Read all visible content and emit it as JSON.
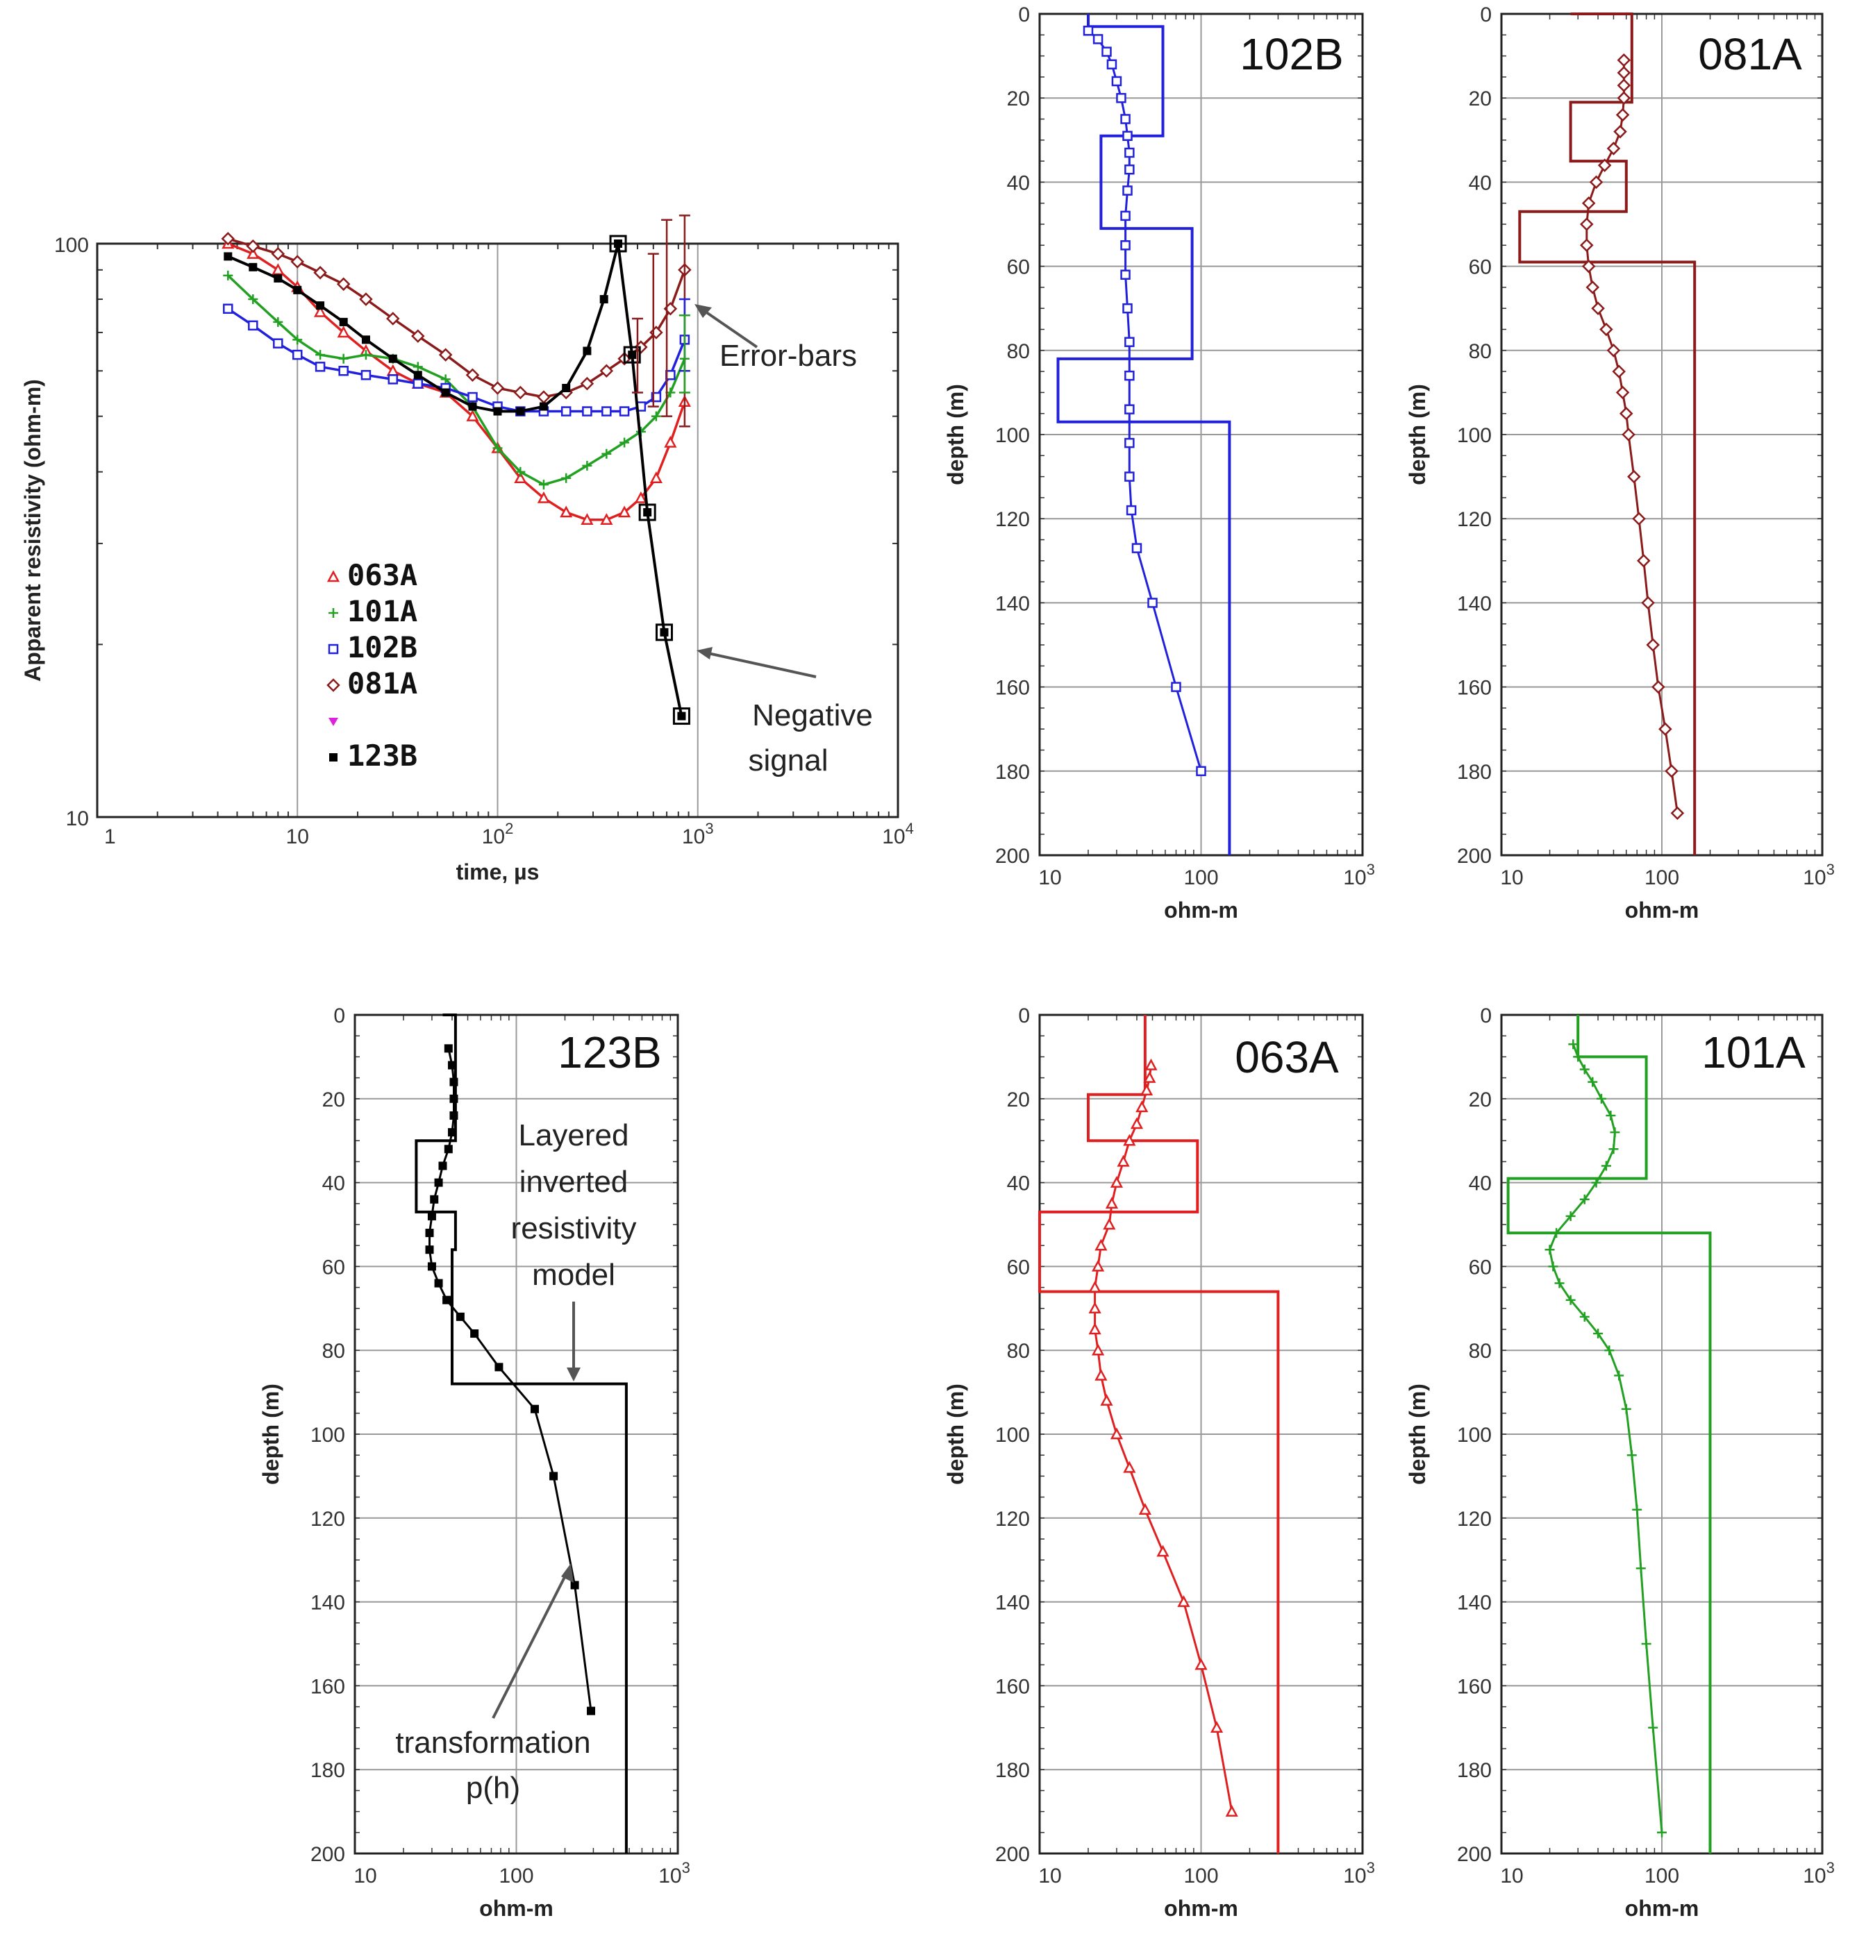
{
  "chart_data": [
    {
      "id": "apparent",
      "type": "line",
      "title": "",
      "xlabel": "time, µs",
      "ylabel": "Apparent resistivity (ohm-m)",
      "xscale": "log",
      "yscale": "log",
      "xlim": [
        1,
        10000
      ],
      "ylim": [
        10,
        100
      ],
      "x_ticks": [
        {
          "base": "1",
          "exp": ""
        },
        {
          "base": "10",
          "exp": ""
        },
        {
          "base": "10",
          "exp": "2"
        },
        {
          "base": "10",
          "exp": "3"
        },
        {
          "base": "10",
          "exp": "4"
        }
      ],
      "y_ticks": [
        "10",
        "100"
      ],
      "legend": [
        {
          "label": "063A",
          "marker": "triangle",
          "color": "#e02020"
        },
        {
          "label": "101A",
          "marker": "plus",
          "color": "#22a022"
        },
        {
          "label": "102B",
          "marker": "square",
          "color": "#2020dd"
        },
        {
          "label": "081A",
          "marker": "diamond",
          "color": "#8b1a1a"
        },
        {
          "label": "",
          "marker": "down-triangle",
          "color": "#e020e0"
        },
        {
          "label": "123B",
          "marker": "filled-square",
          "color": "#000000"
        }
      ],
      "series": [
        {
          "name": "063A",
          "color": "#e02020",
          "marker": "triangle",
          "x": [
            4.5,
            6,
            8,
            10,
            13,
            17,
            22,
            30,
            40,
            55,
            75,
            100,
            130,
            170,
            220,
            280,
            350,
            430,
            520,
            620,
            730,
            860
          ],
          "y": [
            100,
            96,
            90,
            84,
            76,
            70,
            65,
            60,
            57,
            55,
            50,
            44,
            39,
            36,
            34,
            33,
            33,
            34,
            36,
            39,
            45,
            53
          ]
        },
        {
          "name": "101A",
          "color": "#22a022",
          "marker": "plus",
          "x": [
            4.5,
            6,
            8,
            10,
            13,
            17,
            22,
            30,
            40,
            55,
            75,
            100,
            130,
            170,
            220,
            280,
            350,
            430,
            520,
            620,
            730,
            860
          ],
          "y": [
            88,
            80,
            73,
            68,
            64,
            63,
            64,
            63,
            61,
            58,
            52,
            44,
            40,
            38,
            39,
            41,
            43,
            45,
            47,
            50,
            55,
            63
          ]
        },
        {
          "name": "102B",
          "color": "#2020dd",
          "marker": "square",
          "x": [
            4.5,
            6,
            8,
            10,
            13,
            17,
            22,
            30,
            40,
            55,
            75,
            100,
            130,
            170,
            220,
            280,
            350,
            430,
            520,
            620,
            730,
            860
          ],
          "y": [
            77,
            72,
            67,
            64,
            61,
            60,
            59,
            58,
            57,
            56,
            54,
            52,
            51,
            51,
            51,
            51,
            51,
            51,
            52,
            54,
            59,
            68
          ]
        },
        {
          "name": "081A",
          "color": "#8b1a1a",
          "marker": "diamond",
          "x": [
            4.5,
            6,
            8,
            10,
            13,
            17,
            22,
            30,
            40,
            55,
            75,
            100,
            130,
            170,
            220,
            280,
            350,
            430,
            520,
            620,
            730,
            860
          ],
          "y": [
            102,
            99,
            96,
            93,
            89,
            85,
            80,
            74,
            69,
            64,
            59,
            56,
            55,
            54,
            55,
            57,
            60,
            63,
            66,
            70,
            77,
            90
          ]
        },
        {
          "name": "123B",
          "color": "#000000",
          "marker": "filled-square",
          "x": [
            4.5,
            6,
            8,
            10,
            13,
            17,
            22,
            30,
            40,
            55,
            75,
            100,
            130,
            170,
            220,
            280,
            340,
            400,
            470,
            560,
            680,
            830
          ],
          "y": [
            95,
            91,
            87,
            83,
            78,
            73,
            68,
            63,
            59,
            55,
            52,
            51,
            51,
            52,
            56,
            65,
            80,
            100,
            64,
            34,
            21,
            15
          ]
        }
      ],
      "open_markers": [
        {
          "x": 400,
          "y": 100
        },
        {
          "x": 470,
          "y": 64
        },
        {
          "x": 560,
          "y": 34
        },
        {
          "x": 680,
          "y": 21
        },
        {
          "x": 830,
          "y": 15
        }
      ],
      "error_bars": [
        {
          "series": "081A",
          "x": 500,
          "low": 55,
          "high": 74
        },
        {
          "series": "081A",
          "x": 600,
          "low": 52,
          "high": 96
        },
        {
          "series": "081A",
          "x": 700,
          "low": 50,
          "high": 110
        },
        {
          "series": "081A",
          "x": 860,
          "low": 48,
          "high": 112
        },
        {
          "series": "102B",
          "x": 860,
          "low": 60,
          "high": 80
        },
        {
          "series": "101A",
          "x": 860,
          "low": 55,
          "high": 75
        }
      ],
      "annotations": [
        "Error-bars",
        "Negative",
        "signal"
      ]
    },
    {
      "id": "102B",
      "type": "line",
      "title": "102B",
      "xlabel": "ohm-m",
      "ylabel": "depth (m)",
      "xscale": "log",
      "xlim": [
        10,
        1000
      ],
      "ylim": [
        0,
        200
      ],
      "x_ticks": [
        {
          "base": "10",
          "exp": ""
        },
        {
          "base": "100",
          "exp": ""
        },
        {
          "base": "10",
          "exp": "3"
        }
      ],
      "y_ticks": [
        "0",
        "20",
        "40",
        "60",
        "80",
        "100",
        "120",
        "140",
        "160",
        "180",
        "200"
      ],
      "color": "#2020dd",
      "marker": "square",
      "model": {
        "rho": [
          20,
          58,
          24,
          88,
          13,
          150
        ],
        "tops": [
          0,
          3,
          29,
          51,
          82,
          97,
          200
        ]
      },
      "transform": {
        "depth": [
          4,
          6,
          9,
          12,
          16,
          20,
          25,
          29,
          33,
          37,
          42,
          48,
          55,
          62,
          70,
          78,
          86,
          94,
          102,
          110,
          118,
          127,
          140,
          160,
          180
        ],
        "rho": [
          20,
          23,
          26,
          28,
          30,
          32,
          34,
          35,
          36,
          36,
          35,
          34,
          34,
          34,
          35,
          36,
          36,
          36,
          36,
          36,
          37,
          40,
          50,
          70,
          100
        ]
      }
    },
    {
      "id": "081A",
      "type": "line",
      "title": "081A",
      "xlabel": "ohm-m",
      "ylabel": "depth (m)",
      "xscale": "log",
      "xlim": [
        10,
        1000
      ],
      "ylim": [
        0,
        200
      ],
      "x_ticks": [
        {
          "base": "10",
          "exp": ""
        },
        {
          "base": "100",
          "exp": ""
        },
        {
          "base": "10",
          "exp": "3"
        }
      ],
      "y_ticks": [
        "0",
        "20",
        "40",
        "60",
        "80",
        "100",
        "120",
        "140",
        "160",
        "180",
        "200"
      ],
      "color": "#8b1a1a",
      "marker": "diamond",
      "model": {
        "rho": [
          27,
          65,
          27,
          60,
          13,
          160
        ],
        "tops": [
          0,
          0,
          21,
          35,
          47,
          59,
          200
        ]
      },
      "transform": {
        "depth": [
          11,
          14,
          17,
          20,
          24,
          28,
          32,
          36,
          40,
          45,
          50,
          55,
          60,
          65,
          70,
          75,
          80,
          85,
          90,
          95,
          100,
          110,
          120,
          130,
          140,
          150,
          160,
          170,
          180,
          190
        ],
        "rho": [
          58,
          58,
          58,
          58,
          57,
          55,
          50,
          44,
          39,
          35,
          34,
          34,
          35,
          37,
          40,
          45,
          50,
          54,
          57,
          60,
          62,
          67,
          72,
          77,
          82,
          88,
          95,
          105,
          115,
          125
        ]
      }
    },
    {
      "id": "123B",
      "type": "line",
      "title": "123B",
      "xlabel": "ohm-m",
      "ylabel": "depth (m)",
      "xscale": "log",
      "xlim": [
        10,
        1000
      ],
      "ylim": [
        0,
        200
      ],
      "x_ticks": [
        {
          "base": "10",
          "exp": ""
        },
        {
          "base": "100",
          "exp": ""
        },
        {
          "base": "10",
          "exp": "3"
        }
      ],
      "y_ticks": [
        "0",
        "20",
        "40",
        "60",
        "80",
        "100",
        "120",
        "140",
        "160",
        "180",
        "200"
      ],
      "color": "#000000",
      "marker": "filled-square",
      "model": {
        "rho": [
          35,
          42,
          24,
          42,
          40,
          480
        ],
        "tops": [
          0,
          0,
          30,
          47,
          56,
          88,
          200
        ]
      },
      "transform": {
        "depth": [
          8,
          12,
          16,
          20,
          24,
          28,
          32,
          36,
          40,
          44,
          48,
          52,
          56,
          60,
          64,
          68,
          72,
          76,
          84,
          94,
          110,
          136,
          166
        ],
        "rho": [
          38,
          40,
          41,
          41,
          41,
          40,
          38,
          35,
          33,
          31,
          30,
          29,
          29,
          30,
          33,
          37,
          45,
          55,
          78,
          130,
          170,
          230,
          290
        ]
      },
      "annotations": [
        "Layered",
        "inverted",
        "resistivity",
        "model",
        "transformation",
        "p(h)"
      ]
    },
    {
      "id": "063A",
      "type": "line",
      "title": "063A",
      "xlabel": "ohm-m",
      "ylabel": "depth (m)",
      "xscale": "log",
      "xlim": [
        10,
        1000
      ],
      "ylim": [
        0,
        200
      ],
      "x_ticks": [
        {
          "base": "10",
          "exp": ""
        },
        {
          "base": "100",
          "exp": ""
        },
        {
          "base": "10",
          "exp": "3"
        }
      ],
      "y_ticks": [
        "0",
        "20",
        "40",
        "60",
        "80",
        "100",
        "120",
        "140",
        "160",
        "180",
        "200"
      ],
      "color": "#e02020",
      "marker": "triangle",
      "model": {
        "rho": [
          45,
          20,
          95,
          10,
          300
        ],
        "tops": [
          0,
          19,
          30,
          47,
          66,
          200
        ]
      },
      "transform": {
        "depth": [
          12,
          15,
          18,
          22,
          26,
          30,
          35,
          40,
          45,
          50,
          55,
          60,
          65,
          70,
          75,
          80,
          86,
          92,
          100,
          108,
          118,
          128,
          140,
          155,
          170,
          190
        ],
        "rho": [
          49,
          48,
          46,
          43,
          40,
          36,
          33,
          30,
          28,
          27,
          24,
          23,
          22,
          22,
          22,
          23,
          24,
          26,
          30,
          36,
          45,
          58,
          78,
          100,
          125,
          155
        ]
      }
    },
    {
      "id": "101A",
      "type": "line",
      "title": "101A",
      "xlabel": "ohm-m",
      "ylabel": "depth (m)",
      "xscale": "log",
      "xlim": [
        10,
        1000
      ],
      "ylim": [
        0,
        200
      ],
      "x_ticks": [
        {
          "base": "10",
          "exp": ""
        },
        {
          "base": "100",
          "exp": ""
        },
        {
          "base": "10",
          "exp": "3"
        }
      ],
      "y_ticks": [
        "0",
        "20",
        "40",
        "60",
        "80",
        "100",
        "120",
        "140",
        "160",
        "180",
        "200"
      ],
      "color": "#22a022",
      "marker": "plus",
      "model": {
        "rho": [
          30,
          80,
          11,
          200
        ],
        "tops": [
          0,
          10,
          39,
          52,
          200
        ]
      },
      "transform": {
        "depth": [
          7,
          10,
          13,
          16,
          20,
          24,
          28,
          32,
          36,
          40,
          44,
          48,
          52,
          56,
          60,
          64,
          68,
          72,
          76,
          80,
          86,
          94,
          105,
          118,
          132,
          150,
          170,
          195
        ],
        "rho": [
          28,
          30,
          33,
          37,
          42,
          48,
          51,
          50,
          45,
          39,
          33,
          27,
          22,
          20,
          21,
          23,
          27,
          33,
          40,
          47,
          54,
          60,
          65,
          70,
          74,
          80,
          88,
          100
        ]
      }
    }
  ]
}
